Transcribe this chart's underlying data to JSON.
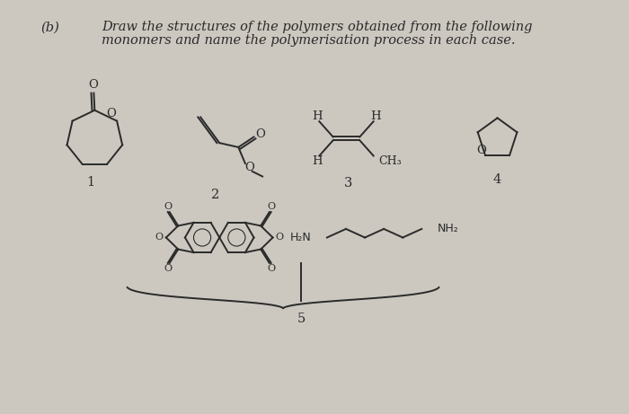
{
  "bg_color": "#ccc8c0",
  "text_color": "#2a2a2a",
  "title_b": "(b)",
  "title_line1": "Draw the structures of the polymers obtained from the following",
  "title_line2": "monomers and name the polymerisation process in each case.",
  "label1": "1",
  "label2": "2",
  "label3": "3",
  "label4": "4",
  "label5": "5",
  "font_size_text": 10.5,
  "font_size_label": 10.5,
  "font_size_atom": 9.5
}
